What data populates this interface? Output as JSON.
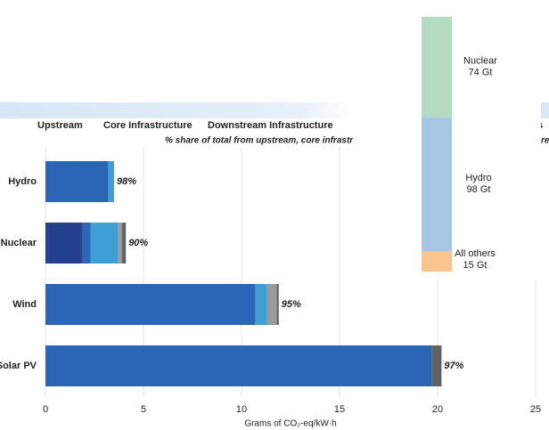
{
  "chart_data": [
    {
      "type": "hbar_stacked",
      "subtitle": "% share of total from upstream, core infrastruc",
      "x_label": "Grams of CO₂-eq/kW·h",
      "categories": [
        "Hydro",
        "Nuclear",
        "Wind",
        "Solar PV"
      ],
      "series": [
        {
          "name": "Upstream",
          "color": "#24408e",
          "values": [
            0,
            1.9,
            0,
            0
          ]
        },
        {
          "name": "Core Infrastructure",
          "color": "#2a66b5",
          "values": [
            3.2,
            0.4,
            10.7,
            19.7
          ]
        },
        {
          "name": "Downstream Infrastructure",
          "color": "#3d9fd6",
          "values": [
            0.3,
            1.4,
            0.6,
            0
          ]
        },
        {
          "color": "#9a9a9a",
          "values": [
            0,
            0.2,
            0.5,
            0
          ]
        },
        {
          "color": "#5f6366",
          "values": [
            0,
            0.2,
            0.1,
            0.5
          ]
        }
      ],
      "share": {
        "values": [
          98,
          90,
          95,
          97
        ],
        "value_labels": [
          "98%",
          "90%",
          "95%",
          "97%"
        ]
      },
      "xlim": [
        0,
        25
      ],
      "xticks": [
        0,
        5,
        10,
        15,
        20,
        25
      ],
      "grid": true,
      "fragments": [
        "s",
        "re"
      ]
    },
    {
      "type": "column_stacked",
      "categories": [
        "Nuclear",
        "Hydro",
        "All others"
      ],
      "values": [
        74,
        98,
        15
      ],
      "value_labels": [
        "74 Gt",
        "98 Gt",
        "15 Gt"
      ],
      "colors": [
        "#b5dcc2",
        "#a6c6e6",
        "#fbc48e"
      ]
    }
  ]
}
